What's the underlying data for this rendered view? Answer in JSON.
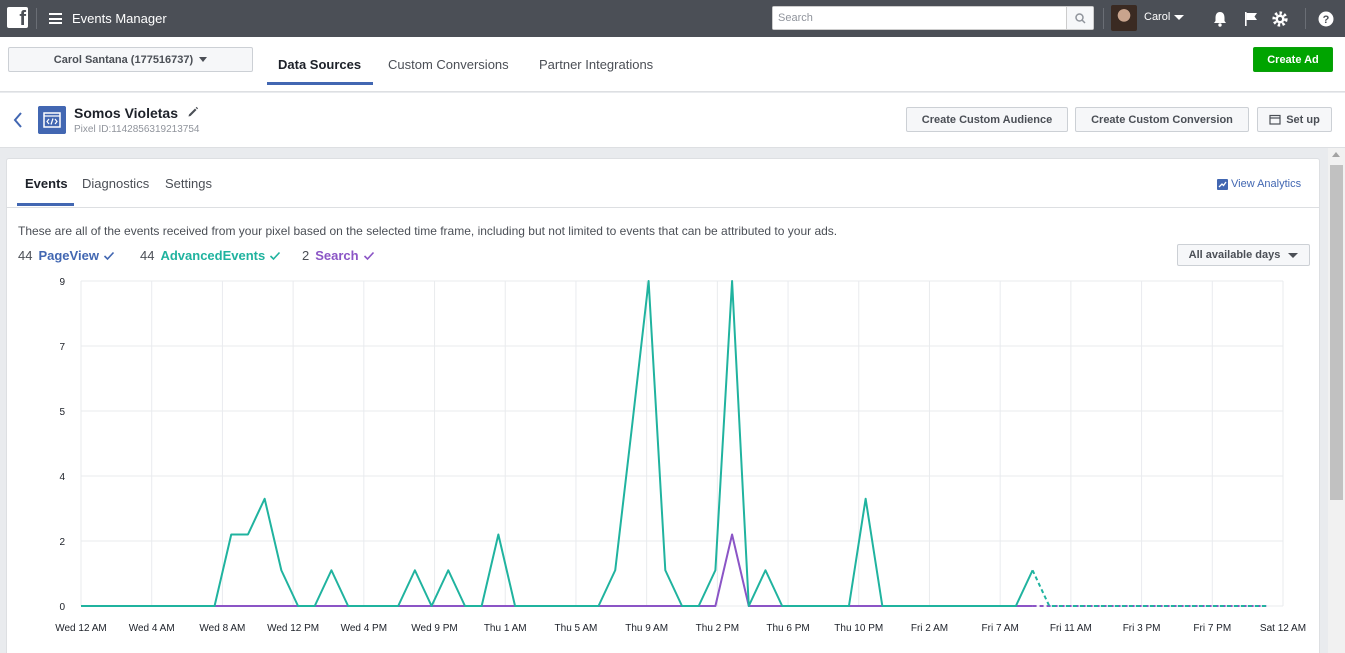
{
  "topbar": {
    "logo": "f",
    "app_title": "Events Manager",
    "search_placeholder": "Search",
    "user_name": "Carol"
  },
  "nav": {
    "account": "Carol Santana (177516737)",
    "tabs": [
      "Data Sources",
      "Custom Conversions",
      "Partner Integrations"
    ],
    "create_ad": "Create Ad"
  },
  "pixel": {
    "name": "Somos Violetas",
    "id_label": "Pixel ID:1142856319213754",
    "buttons": {
      "custom_audience": "Create Custom Audience",
      "custom_conversion": "Create Custom Conversion",
      "setup": "Set up"
    }
  },
  "content": {
    "tabs": [
      "Events",
      "Diagnostics",
      "Settings"
    ],
    "view_analytics": "View Analytics",
    "description": "These are all of the events received from your pixel based on the selected time frame, including but not limited to events that can be attributed to your ads.",
    "legend": [
      {
        "count": "44",
        "name": "PageView",
        "color": "#4267b2"
      },
      {
        "count": "44",
        "name": "AdvancedEvents",
        "color": "#20b39f"
      },
      {
        "count": "2",
        "name": "Search",
        "color": "#8b55c6"
      }
    ],
    "days_select": "All available days"
  },
  "colors": {
    "pageview": "#4267b2",
    "advanced": "#20b39f",
    "search": "#8b55c6",
    "grid": "#e9ebee"
  },
  "chart_data": {
    "type": "line",
    "y_tick_labels": [
      "0",
      "2",
      "4",
      "5",
      "7",
      "9"
    ],
    "y_tick_values": [
      0,
      2,
      4,
      6,
      8,
      10
    ],
    "ylim": [
      0,
      10
    ],
    "x_tick_labels": [
      "Wed 12 AM",
      "Wed 4 AM",
      "Wed 8 AM",
      "Wed 12 PM",
      "Wed 4 PM",
      "Wed 9 PM",
      "Thu 1 AM",
      "Thu 5 AM",
      "Thu 9 AM",
      "Thu 2 PM",
      "Thu 6 PM",
      "Thu 10 PM",
      "Fri 2 AM",
      "Fri 7 AM",
      "Fri 11 AM",
      "Fri 3 PM",
      "Fri 7 PM",
      "Sat 12 AM"
    ],
    "x_range": [
      0,
      72
    ],
    "grid": true,
    "series": [
      {
        "name": "AdvancedEvents",
        "color": "#20b39f",
        "points": [
          [
            0,
            0
          ],
          [
            8,
            0
          ],
          [
            9,
            2.2
          ],
          [
            10,
            2.2
          ],
          [
            11,
            3.3
          ],
          [
            12,
            1.1
          ],
          [
            13,
            0
          ],
          [
            14,
            0
          ],
          [
            15,
            1.1
          ],
          [
            16,
            0
          ],
          [
            19,
            0
          ],
          [
            20,
            1.1
          ],
          [
            21,
            0
          ],
          [
            22,
            1.1
          ],
          [
            23,
            0
          ],
          [
            24,
            0
          ],
          [
            25,
            2.2
          ],
          [
            26,
            0
          ],
          [
            31,
            0
          ],
          [
            32,
            1.1
          ],
          [
            33,
            5.5
          ],
          [
            34,
            10
          ],
          [
            35,
            1.1
          ],
          [
            36,
            0
          ],
          [
            37,
            0
          ],
          [
            38,
            1.1
          ],
          [
            39,
            10
          ],
          [
            40,
            0
          ],
          [
            41,
            1.1
          ],
          [
            42,
            0
          ],
          [
            46,
            0
          ],
          [
            47,
            3.3
          ],
          [
            48,
            0
          ],
          [
            56,
            0
          ],
          [
            57,
            1.1
          ]
        ],
        "dashed_points": [
          [
            57,
            1.1
          ],
          [
            58,
            0
          ],
          [
            71,
            0
          ]
        ]
      },
      {
        "name": "Search",
        "color": "#8b55c6",
        "points": [
          [
            0,
            0
          ],
          [
            38,
            0
          ],
          [
            39,
            2.2
          ],
          [
            40,
            0
          ],
          [
            57,
            0
          ]
        ],
        "dashed_points": [
          [
            57,
            0
          ],
          [
            71,
            0
          ]
        ]
      }
    ]
  }
}
